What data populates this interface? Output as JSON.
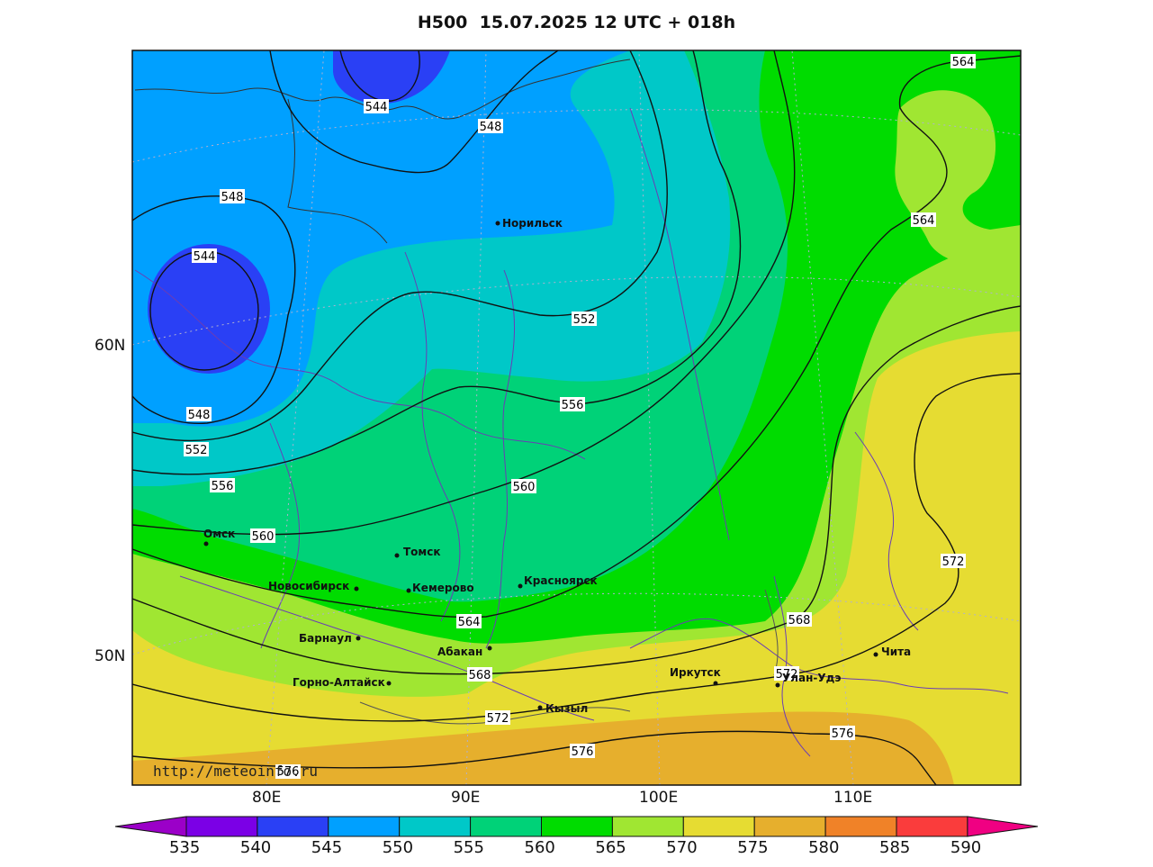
{
  "title": "H500  15.07.2025 12 UTC + 018h",
  "watermark": "http://meteoinfo.ru",
  "lat_labels": [
    "60N",
    "50N"
  ],
  "lon_labels": [
    "80E",
    "90E",
    "100E",
    "110E"
  ],
  "colorbar": {
    "levels": [
      "535",
      "540",
      "545",
      "550",
      "555",
      "560",
      "565",
      "570",
      "575",
      "580",
      "585",
      "590"
    ],
    "colors": [
      "#9b00c8",
      "#7b00e6",
      "#2a40f5",
      "#00a0ff",
      "#00c8c8",
      "#00d278",
      "#00dc00",
      "#a0e632",
      "#e6dc32",
      "#e6af2d",
      "#f08228",
      "#fa3c3c",
      "#f00082"
    ]
  },
  "contour_labels": [
    "544",
    "548",
    "552",
    "556",
    "560",
    "564",
    "568",
    "572",
    "576"
  ],
  "cities": [
    "Норильск",
    "Омск",
    "Томск",
    "Новосибирск",
    "Кемерово",
    "Красноярск",
    "Барнаул",
    "Абакан",
    "Горно-Алтайск",
    "Иркутск",
    "Улан-Удэ",
    "Чита",
    "Кызыл"
  ],
  "colors": {
    "c545": "#2a40f5",
    "c550": "#00a0ff",
    "c555": "#00c8c8",
    "c560": "#00d278",
    "c565": "#00dc00",
    "c570": "#a0e632",
    "c575": "#e6dc32",
    "c580": "#e6af2d"
  }
}
